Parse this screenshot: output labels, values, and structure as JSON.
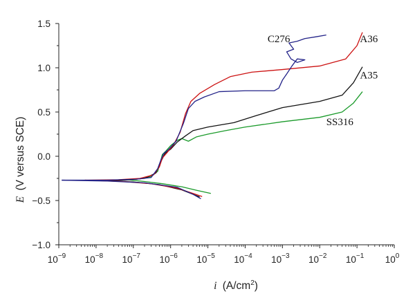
{
  "chart_data": {
    "type": "line",
    "xscale": "log",
    "xlabel": "i (A/cm²)",
    "xlabel_italic": "i",
    "xlabel_unit": "A/cm",
    "xlabel_unit_sup": "2",
    "xlabel_close": ")",
    "ylabel_italic": "E",
    "ylabel_rest": "(V versus SCE)",
    "xlim": [
      1e-09,
      1
    ],
    "ylim": [
      -1.0,
      1.5
    ],
    "xticks": [
      {
        "value": 1e-09,
        "base": "10",
        "exp": "−9"
      },
      {
        "value": 1e-08,
        "base": "10",
        "exp": "−8"
      },
      {
        "value": 1e-07,
        "base": "10",
        "exp": "−7"
      },
      {
        "value": 1e-06,
        "base": "10",
        "exp": "−6"
      },
      {
        "value": 1e-05,
        "base": "10",
        "exp": "−5"
      },
      {
        "value": 0.0001,
        "base": "10",
        "exp": "−4"
      },
      {
        "value": 0.001,
        "base": "10",
        "exp": "−3"
      },
      {
        "value": 0.01,
        "base": "10",
        "exp": "−2"
      },
      {
        "value": 0.1,
        "base": "10",
        "exp": "−1"
      },
      {
        "value": 1,
        "base": "10",
        "exp": "0"
      }
    ],
    "yticks": [
      {
        "value": 1.5,
        "label": "1.5"
      },
      {
        "value": 1.0,
        "label": "1.0"
      },
      {
        "value": 0.5,
        "label": "0.5"
      },
      {
        "value": 0.0,
        "label": "0.0"
      },
      {
        "value": -0.5,
        "label": "−0.5"
      },
      {
        "value": -1.0,
        "label": "−1.0"
      }
    ],
    "series": [
      {
        "name": "SS316",
        "color": "#1a9a2a",
        "label_at": [
          0.015,
          0.35
        ],
        "cathodic": [
          [
            7e-08,
            -0.265
          ],
          [
            2e-07,
            -0.285
          ],
          [
            6e-07,
            -0.31
          ],
          [
            2e-06,
            -0.345
          ],
          [
            5e-06,
            -0.385
          ],
          [
            1.2e-05,
            -0.42
          ]
        ],
        "anodic": [
          [
            7e-08,
            -0.265
          ],
          [
            1.5e-07,
            -0.255
          ],
          [
            3e-07,
            -0.23
          ],
          [
            4.5e-07,
            -0.17
          ],
          [
            5.2e-07,
            -0.08
          ],
          [
            6e-07,
            0.02
          ],
          [
            7.5e-07,
            0.06
          ],
          [
            1e-06,
            0.12
          ],
          [
            1.5e-06,
            0.18
          ],
          [
            2e-06,
            0.2
          ],
          [
            3e-06,
            0.17
          ],
          [
            5e-06,
            0.22
          ],
          [
            1e-05,
            0.25
          ],
          [
            3e-05,
            0.29
          ],
          [
            0.0001,
            0.33
          ],
          [
            0.001,
            0.39
          ],
          [
            0.01,
            0.44
          ],
          [
            0.04,
            0.5
          ],
          [
            0.08,
            0.6
          ],
          [
            0.14,
            0.73
          ]
        ]
      },
      {
        "name": "A35",
        "color": "#111111",
        "label_at": [
          0.12,
          0.88
        ],
        "cathodic": [
          [
            1.5e-08,
            -0.275
          ],
          [
            1e-07,
            -0.29
          ],
          [
            5e-07,
            -0.32
          ],
          [
            2e-06,
            -0.38
          ],
          [
            4e-06,
            -0.43
          ],
          [
            6e-06,
            -0.46
          ]
        ],
        "anodic": [
          [
            1.5e-08,
            -0.275
          ],
          [
            6e-08,
            -0.27
          ],
          [
            2e-07,
            -0.25
          ],
          [
            4e-07,
            -0.19
          ],
          [
            5.5e-07,
            -0.06
          ],
          [
            7e-07,
            0.03
          ],
          [
            1e-06,
            0.08
          ],
          [
            1.5e-06,
            0.16
          ],
          [
            2.5e-06,
            0.23
          ],
          [
            4e-06,
            0.29
          ],
          [
            1e-05,
            0.33
          ],
          [
            5e-05,
            0.38
          ],
          [
            0.0002,
            0.46
          ],
          [
            0.001,
            0.55
          ],
          [
            0.01,
            0.62
          ],
          [
            0.04,
            0.69
          ],
          [
            0.08,
            0.83
          ],
          [
            0.14,
            1.01
          ]
        ]
      },
      {
        "name": "A36",
        "color": "#cc1111",
        "label_at": [
          0.12,
          1.29
        ],
        "cathodic": [
          [
            5e-09,
            -0.27
          ],
          [
            5e-08,
            -0.285
          ],
          [
            3e-07,
            -0.31
          ],
          [
            1.5e-06,
            -0.36
          ],
          [
            4e-06,
            -0.42
          ],
          [
            7e-06,
            -0.455
          ]
        ],
        "anodic": [
          [
            5e-09,
            -0.27
          ],
          [
            4e-08,
            -0.265
          ],
          [
            1.5e-07,
            -0.25
          ],
          [
            3.5e-07,
            -0.21
          ],
          [
            5e-07,
            -0.12
          ],
          [
            6e-07,
            -0.02
          ],
          [
            8e-07,
            0.04
          ],
          [
            1.2e-06,
            0.13
          ],
          [
            1.8e-06,
            0.27
          ],
          [
            2.5e-06,
            0.48
          ],
          [
            3.5e-06,
            0.62
          ],
          [
            6e-06,
            0.71
          ],
          [
            1.5e-05,
            0.81
          ],
          [
            4e-05,
            0.9
          ],
          [
            0.00015,
            0.95
          ],
          [
            0.001,
            0.98
          ],
          [
            0.01,
            1.02
          ],
          [
            0.05,
            1.1
          ],
          [
            0.1,
            1.25
          ],
          [
            0.14,
            1.4
          ]
        ]
      },
      {
        "name": "C276",
        "color": "#222288",
        "label_at": [
          0.0004,
          1.29
        ],
        "cathodic": [
          [
            1.2e-09,
            -0.27
          ],
          [
            2e-08,
            -0.28
          ],
          [
            2e-07,
            -0.3
          ],
          [
            1.5e-06,
            -0.35
          ],
          [
            4e-06,
            -0.43
          ],
          [
            6.5e-06,
            -0.48
          ]
        ],
        "anodic": [
          [
            1.2e-09,
            -0.27
          ],
          [
            2e-08,
            -0.27
          ],
          [
            1.2e-07,
            -0.26
          ],
          [
            3e-07,
            -0.24
          ],
          [
            4.5e-07,
            -0.14
          ],
          [
            5.5e-07,
            -0.04
          ],
          [
            6.5e-07,
            0.03
          ],
          [
            9e-07,
            0.08
          ],
          [
            1.4e-06,
            0.17
          ],
          [
            2.2e-06,
            0.37
          ],
          [
            3e-06,
            0.54
          ],
          [
            4.5e-06,
            0.62
          ],
          [
            8e-06,
            0.67
          ],
          [
            2e-05,
            0.73
          ],
          [
            0.0001,
            0.74
          ],
          [
            0.0006,
            0.74
          ],
          [
            0.0008,
            0.77
          ],
          [
            0.001,
            0.86
          ],
          [
            0.0013,
            0.93
          ],
          [
            0.0018,
            1.02
          ],
          [
            0.0025,
            1.1
          ],
          [
            0.004,
            1.09
          ],
          [
            0.0025,
            1.06
          ],
          [
            0.0017,
            1.1
          ],
          [
            0.0013,
            1.18
          ],
          [
            0.002,
            1.21
          ],
          [
            0.0015,
            1.28
          ],
          [
            0.0025,
            1.3
          ],
          [
            0.004,
            1.33
          ],
          [
            0.008,
            1.35
          ],
          [
            0.015,
            1.37
          ]
        ]
      }
    ]
  }
}
